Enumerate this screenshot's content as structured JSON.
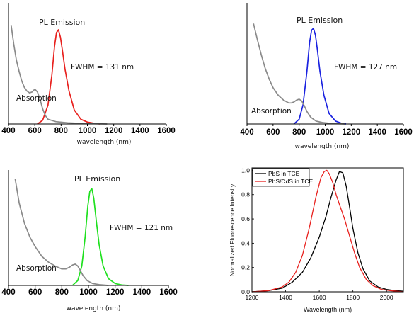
{
  "chart_data": [
    {
      "type": "line",
      "panel": "top-left",
      "xlabel": "wavelength (nm)",
      "xlim": [
        400,
        1600
      ],
      "xticks": [
        "400",
        "600",
        "800",
        "1000",
        "1200",
        "1400",
        "1600"
      ],
      "annotations": {
        "emission": "PL Emission",
        "fwhm": "FWHM = 131 nm",
        "absorption": "Absorption"
      },
      "colors": {
        "emission": "#e8211e",
        "absorption": "#8a8a8a"
      },
      "series": [
        {
          "name": "PL Emission",
          "x": [
            620,
            660,
            700,
            730,
            750,
            765,
            780,
            795,
            810,
            830,
            860,
            900,
            950,
            1000,
            1060,
            1100
          ],
          "y": [
            0.0,
            0.04,
            0.2,
            0.52,
            0.82,
            0.97,
            1.0,
            0.92,
            0.78,
            0.58,
            0.35,
            0.15,
            0.05,
            0.02,
            0.005,
            0.0
          ]
        },
        {
          "name": "Absorption",
          "x": [
            420,
            440,
            460,
            480,
            500,
            520,
            540,
            560,
            580,
            600,
            620,
            640,
            660,
            680,
            700,
            760,
            850,
            950,
            1050,
            1150
          ],
          "y": [
            1.05,
            0.85,
            0.68,
            0.56,
            0.46,
            0.39,
            0.35,
            0.33,
            0.34,
            0.37,
            0.34,
            0.26,
            0.16,
            0.09,
            0.05,
            0.025,
            0.012,
            0.006,
            0.003,
            0.0
          ]
        }
      ]
    },
    {
      "type": "line",
      "panel": "top-right",
      "xlabel": "wavelength (nm)",
      "xlim": [
        400,
        1600
      ],
      "xticks": [
        "400",
        "600",
        "800",
        "1000",
        "1200",
        "1400",
        "1600"
      ],
      "annotations": {
        "emission": "PL Emission",
        "fwhm": "FWHM = 127 nm",
        "absorption": "Absorption"
      },
      "colors": {
        "emission": "#1a22e0",
        "absorption": "#8a8a8a"
      },
      "series": [
        {
          "name": "PL Emission",
          "x": [
            760,
            800,
            830,
            860,
            880,
            895,
            910,
            925,
            940,
            960,
            990,
            1030,
            1080,
            1130,
            1160
          ],
          "y": [
            0.0,
            0.05,
            0.2,
            0.55,
            0.85,
            0.98,
            1.0,
            0.93,
            0.78,
            0.55,
            0.3,
            0.11,
            0.03,
            0.005,
            0.0
          ]
        },
        {
          "name": "Absorption",
          "x": [
            450,
            480,
            510,
            540,
            570,
            600,
            640,
            680,
            720,
            740,
            760,
            780,
            800,
            820,
            840,
            860,
            890,
            930,
            980,
            1050,
            1150
          ],
          "y": [
            1.05,
            0.88,
            0.72,
            0.58,
            0.47,
            0.38,
            0.3,
            0.25,
            0.22,
            0.22,
            0.23,
            0.25,
            0.26,
            0.24,
            0.19,
            0.13,
            0.07,
            0.03,
            0.015,
            0.005,
            0.0
          ]
        }
      ]
    },
    {
      "type": "line",
      "panel": "bottom-left",
      "xlabel": "wavelength (nm)",
      "xlim": [
        400,
        1600
      ],
      "xticks": [
        "400",
        "600",
        "800",
        "1000",
        "1200",
        "1400",
        "1600"
      ],
      "annotations": {
        "emission": "PL Emission",
        "fwhm": "FWHM = 121 nm",
        "absorption": "Absorption"
      },
      "colors": {
        "emission": "#1fe01f",
        "absorption": "#8a8a8a"
      },
      "series": [
        {
          "name": "PL Emission",
          "x": [
            880,
            920,
            950,
            975,
            995,
            1010,
            1025,
            1040,
            1060,
            1080,
            1110,
            1150,
            1200,
            1250,
            1300
          ],
          "y": [
            0.0,
            0.05,
            0.2,
            0.5,
            0.82,
            0.97,
            1.0,
            0.9,
            0.65,
            0.42,
            0.2,
            0.07,
            0.02,
            0.005,
            0.0
          ]
        },
        {
          "name": "Absorption",
          "x": [
            450,
            480,
            520,
            560,
            600,
            650,
            700,
            750,
            800,
            830,
            860,
            880,
            900,
            920,
            940,
            960,
            990,
            1030,
            1080,
            1150
          ],
          "y": [
            1.1,
            0.85,
            0.64,
            0.5,
            0.4,
            0.3,
            0.24,
            0.2,
            0.17,
            0.17,
            0.19,
            0.21,
            0.22,
            0.2,
            0.15,
            0.1,
            0.05,
            0.02,
            0.008,
            0.0
          ]
        }
      ]
    },
    {
      "type": "line",
      "panel": "bottom-right",
      "xlabel": "Wavelength (nm)",
      "ylabel": "Normalized Fluorescence Intensity",
      "xlim": [
        1200,
        2100
      ],
      "ylim": [
        0,
        1.02
      ],
      "xticks": [
        "1200",
        "1400",
        "1600",
        "1800",
        "2000"
      ],
      "yticks": [
        "0.0",
        "0.2",
        "0.4",
        "0.6",
        "0.8",
        "1.0"
      ],
      "legend": {
        "position": "top-left",
        "entries": [
          "PbS in TCE",
          "PbS/CdS in TCE"
        ]
      },
      "colors": {
        "PbS in TCE": "#000000",
        "PbS/CdS in TCE": "#e8211e"
      },
      "series": [
        {
          "name": "PbS in TCE",
          "x": [
            1200,
            1300,
            1380,
            1440,
            1500,
            1550,
            1600,
            1640,
            1670,
            1700,
            1720,
            1740,
            1760,
            1780,
            1800,
            1830,
            1860,
            1900,
            1950,
            2000,
            2050,
            2100
          ],
          "y": [
            0.0,
            0.01,
            0.03,
            0.08,
            0.16,
            0.28,
            0.45,
            0.62,
            0.78,
            0.92,
            0.99,
            0.98,
            0.87,
            0.7,
            0.52,
            0.32,
            0.19,
            0.09,
            0.04,
            0.02,
            0.01,
            0.005
          ]
        },
        {
          "name": "PbS/CdS in TCE",
          "x": [
            1200,
            1300,
            1380,
            1420,
            1460,
            1500,
            1540,
            1580,
            1610,
            1630,
            1645,
            1660,
            1680,
            1700,
            1720,
            1750,
            1780,
            1810,
            1840,
            1880,
            1920,
            1970,
            2020,
            2100
          ],
          "y": [
            0.0,
            0.01,
            0.04,
            0.08,
            0.16,
            0.3,
            0.52,
            0.78,
            0.94,
            0.99,
            1.0,
            0.97,
            0.9,
            0.8,
            0.72,
            0.6,
            0.46,
            0.32,
            0.2,
            0.1,
            0.05,
            0.02,
            0.01,
            0.0
          ]
        }
      ]
    }
  ]
}
